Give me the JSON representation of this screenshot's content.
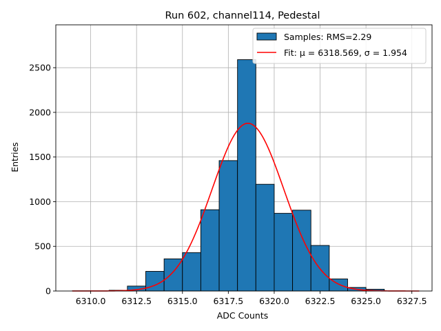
{
  "chart_data": {
    "type": "bar",
    "title": "Run 602, channel114, Pedestal",
    "xlabel": "ADC Counts",
    "ylabel": "Entries",
    "xlim": [
      6308.1,
      6328.6
    ],
    "ylim": [
      0,
      2980
    ],
    "xticks": [
      6310.0,
      6312.5,
      6315.0,
      6317.5,
      6320.0,
      6322.5,
      6325.0,
      6327.5
    ],
    "xtick_labels": [
      "6310.0",
      "6312.5",
      "6315.0",
      "6317.5",
      "6320.0",
      "6322.5",
      "6325.0",
      "6327.5"
    ],
    "yticks": [
      0,
      500,
      1000,
      1500,
      2000,
      2500
    ],
    "ytick_labels": [
      "0",
      "500",
      "1000",
      "1500",
      "2000",
      "2500"
    ],
    "grid": true,
    "legend_position": "top-right",
    "bins": [
      6309,
      6310,
      6311,
      6312,
      6313,
      6314,
      6315,
      6316,
      6317,
      6318,
      6319,
      6320,
      6321,
      6322,
      6323,
      6324,
      6325,
      6326
    ],
    "series": [
      {
        "name": "Samples: RMS=2.29",
        "kind": "histogram",
        "color": "#1f77b4",
        "edge_color": "#000000",
        "values": [
          2,
          0,
          8,
          55,
          220,
          360,
          430,
          910,
          1460,
          2590,
          1195,
          870,
          905,
          510,
          135,
          40,
          20
        ]
      },
      {
        "name": "Fit: μ = 6318.569, σ = 1.954",
        "kind": "gaussian-fit",
        "color": "#ff0000",
        "mu": 6318.569,
        "sigma": 1.954,
        "amplitude": 1878,
        "x_range": [
          6309,
          6327.9
        ]
      }
    ]
  }
}
